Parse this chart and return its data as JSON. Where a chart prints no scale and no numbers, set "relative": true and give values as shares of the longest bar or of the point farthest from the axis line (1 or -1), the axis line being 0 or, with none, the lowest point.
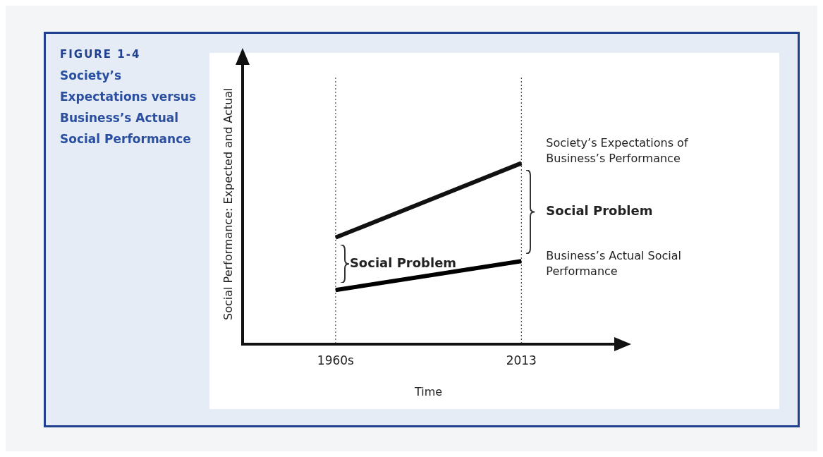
{
  "chart_data": {
    "type": "line",
    "title": "FIGURE 1-4",
    "subtitle": "Society’s Expectations versus Business’s Actual Social Performance",
    "xlabel": "Time",
    "ylabel": "Social Performance: Expected and Actual",
    "categories": [
      "1960s",
      "2013"
    ],
    "relative": true,
    "grid": "x",
    "legend": false,
    "marker": "none",
    "line_style": "solid",
    "series": [
      {
        "name": "Society’s Expectations of Business’s Performance",
        "color": "#111111",
        "values": [
          0.59,
          1
        ]
      },
      {
        "name": "Business’s Actual Social Performance",
        "color": "#000000",
        "values": [
          0.3,
          0.46
        ]
      }
    ],
    "annotations": [
      "Social Problem",
      "Social Problem"
    ]
  }
}
